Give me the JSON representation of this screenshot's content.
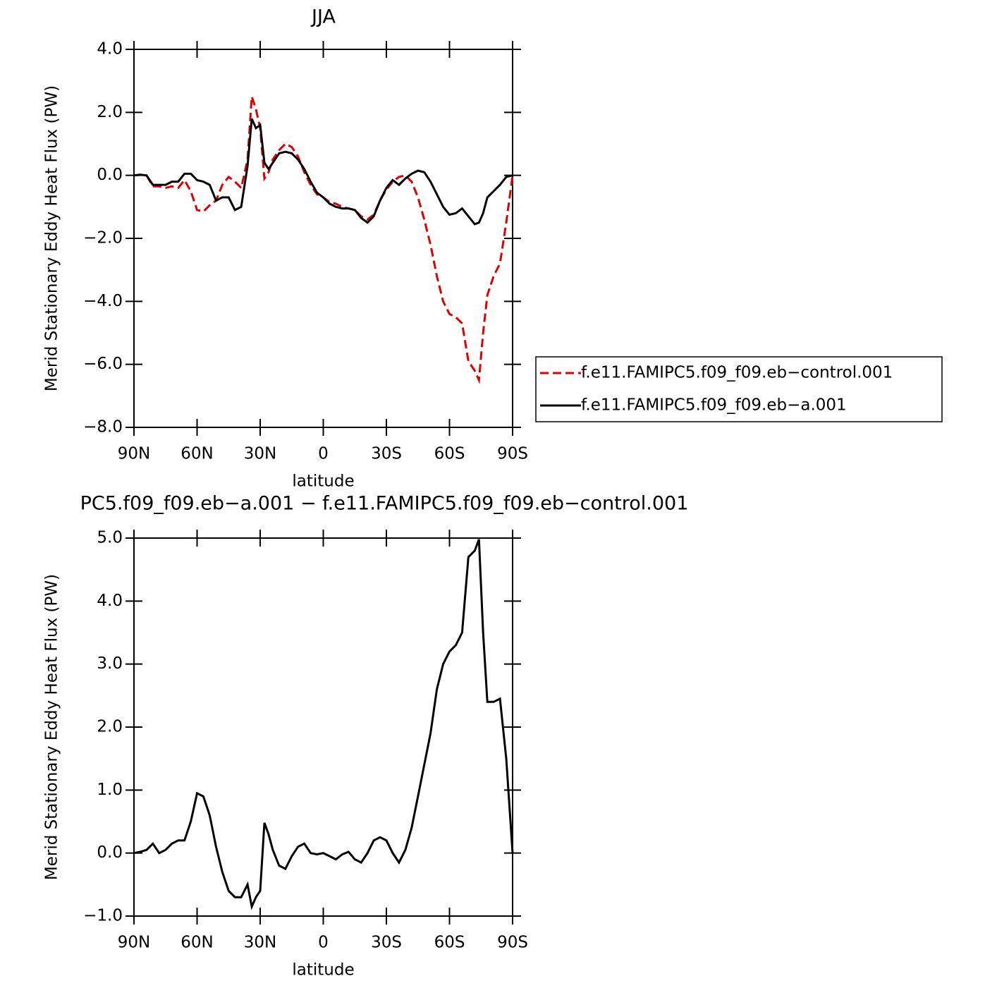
{
  "chart_data": [
    {
      "type": "line",
      "title": "JJA",
      "xlabel": "latitude",
      "ylabel": "Merid Stationary Eddy Heat Flux (PW)",
      "x": [
        90,
        87,
        84,
        81,
        78,
        75,
        72,
        69,
        66,
        63,
        60,
        57,
        54,
        51,
        48,
        45,
        42,
        39,
        36,
        34,
        32,
        30,
        28,
        26,
        24,
        21,
        18,
        15,
        12,
        9,
        6,
        3,
        0,
        -3,
        -6,
        -9,
        -12,
        -15,
        -18,
        -21,
        -24,
        -27,
        -30,
        -33,
        -36,
        -39,
        -42,
        -45,
        -48,
        -51,
        -54,
        -57,
        -60,
        -63,
        -66,
        -69,
        -72,
        -74,
        -76,
        -78,
        -81,
        -84,
        -87,
        -90
      ],
      "series": [
        {
          "name": "f.e11.FAMIPC5.f09_f09.eb−control.001",
          "color": "#e00000",
          "dash": "dashed",
          "values": [
            0,
            0.02,
            0,
            -0.35,
            -0.35,
            -0.4,
            -0.35,
            -0.4,
            -0.15,
            -0.5,
            -1.1,
            -1.15,
            -0.95,
            -0.8,
            -0.3,
            -0.05,
            -0.2,
            -0.4,
            0.5,
            2.5,
            2.1,
            1.5,
            -0.1,
            0.1,
            0.5,
            0.8,
            1.0,
            0.9,
            0.6,
            0.1,
            -0.3,
            -0.6,
            -0.7,
            -0.85,
            -0.9,
            -1.0,
            -1.05,
            -1.1,
            -1.3,
            -1.4,
            -1.25,
            -0.8,
            -0.45,
            -0.2,
            -0.05,
            0.0,
            -0.2,
            -0.7,
            -1.4,
            -2.2,
            -3.2,
            -4.0,
            -4.4,
            -4.5,
            -4.7,
            -5.9,
            -6.2,
            -6.5,
            -5.0,
            -3.8,
            -3.2,
            -2.8,
            -1.5,
            0
          ]
        },
        {
          "name": "f.e11.FAMIPC5.f09_f09.eb−a.001",
          "color": "#000000",
          "dash": "solid",
          "values": [
            0,
            0.02,
            0,
            -0.3,
            -0.3,
            -0.3,
            -0.2,
            -0.2,
            0.05,
            0.05,
            -0.15,
            -0.2,
            -0.3,
            -0.8,
            -0.7,
            -0.7,
            -1.1,
            -1.0,
            0.3,
            1.8,
            1.5,
            1.6,
            0.4,
            0.2,
            0.4,
            0.7,
            0.75,
            0.7,
            0.5,
            0.2,
            -0.2,
            -0.55,
            -0.7,
            -0.9,
            -1.0,
            -1.05,
            -1.05,
            -1.1,
            -1.35,
            -1.5,
            -1.3,
            -0.8,
            -0.4,
            -0.15,
            -0.3,
            -0.1,
            0.05,
            0.15,
            0.1,
            -0.2,
            -0.6,
            -1.0,
            -1.25,
            -1.2,
            -1.05,
            -1.3,
            -1.55,
            -1.5,
            -1.2,
            -0.7,
            -0.5,
            -0.3,
            -0.05,
            0
          ]
        }
      ],
      "xlim": [
        90,
        -90
      ],
      "xticks": [
        {
          "value": 90,
          "label": "90N"
        },
        {
          "value": 60,
          "label": "60N"
        },
        {
          "value": 30,
          "label": "30N"
        },
        0,
        {
          "value": -30,
          "label": "30S"
        },
        {
          "value": -60,
          "label": "60S"
        },
        {
          "value": -90,
          "label": "90S"
        }
      ],
      "ylim": [
        -8,
        4
      ],
      "yticks": [
        {
          "value": -8,
          "label": "−8.0"
        },
        {
          "value": -6,
          "label": "−6.0"
        },
        {
          "value": -4,
          "label": "−4.0"
        },
        {
          "value": -2,
          "label": "−2.0"
        },
        {
          "value": 0,
          "label": "0.0"
        },
        {
          "value": 2,
          "label": "2.0"
        },
        {
          "value": 4,
          "label": "4.0"
        }
      ],
      "legend": "right"
    },
    {
      "type": "line",
      "title": "PC5.f09_f09.eb−a.001 − f.e11.FAMIPC5.f09_f09.eb−control.001",
      "xlabel": "latitude",
      "ylabel": "Merid Stationary Eddy Heat Flux (PW)",
      "x": [
        90,
        87,
        84,
        81,
        78,
        75,
        72,
        69,
        66,
        63,
        60,
        57,
        54,
        51,
        48,
        45,
        42,
        39,
        36,
        34,
        32,
        30,
        28,
        26,
        24,
        21,
        18,
        15,
        12,
        9,
        6,
        3,
        0,
        -3,
        -6,
        -9,
        -12,
        -15,
        -18,
        -21,
        -24,
        -27,
        -30,
        -33,
        -36,
        -39,
        -42,
        -45,
        -48,
        -51,
        -54,
        -57,
        -60,
        -63,
        -66,
        -69,
        -72,
        -74,
        -76,
        -78,
        -81,
        -84,
        -87,
        -90
      ],
      "color": "#000000",
      "values": [
        0,
        0.02,
        0.05,
        0.15,
        0.0,
        0.05,
        0.15,
        0.2,
        0.2,
        0.5,
        0.95,
        0.9,
        0.6,
        0.1,
        -0.3,
        -0.6,
        -0.7,
        -0.7,
        -0.5,
        -0.85,
        -0.7,
        -0.6,
        0.48,
        0.3,
        0.05,
        -0.2,
        -0.25,
        -0.05,
        0.1,
        0.15,
        0.0,
        -0.02,
        0.0,
        -0.05,
        -0.1,
        -0.02,
        0.02,
        -0.1,
        -0.15,
        0.0,
        0.2,
        0.25,
        0.2,
        0.0,
        -0.15,
        0.05,
        0.4,
        0.9,
        1.4,
        1.9,
        2.6,
        3.0,
        3.2,
        3.3,
        3.5,
        4.7,
        4.8,
        4.98,
        3.5,
        2.4,
        2.4,
        2.45,
        1.5,
        0
      ],
      "xlim": [
        90,
        -90
      ],
      "xticks": [
        {
          "value": 90,
          "label": "90N"
        },
        {
          "value": 60,
          "label": "60N"
        },
        {
          "value": 30,
          "label": "30N"
        },
        0,
        {
          "value": -30,
          "label": "30S"
        },
        {
          "value": -60,
          "label": "60S"
        },
        {
          "value": -90,
          "label": "90S"
        }
      ],
      "ylim": [
        -1,
        5
      ],
      "yticks": [
        {
          "value": -1,
          "label": "−1.0"
        },
        {
          "value": 0,
          "label": "0.0"
        },
        {
          "value": 1,
          "label": "1.0"
        },
        {
          "value": 2,
          "label": "2.0"
        },
        {
          "value": 3,
          "label": "3.0"
        },
        {
          "value": 4,
          "label": "4.0"
        },
        {
          "value": 5,
          "label": "5.0"
        }
      ]
    }
  ]
}
